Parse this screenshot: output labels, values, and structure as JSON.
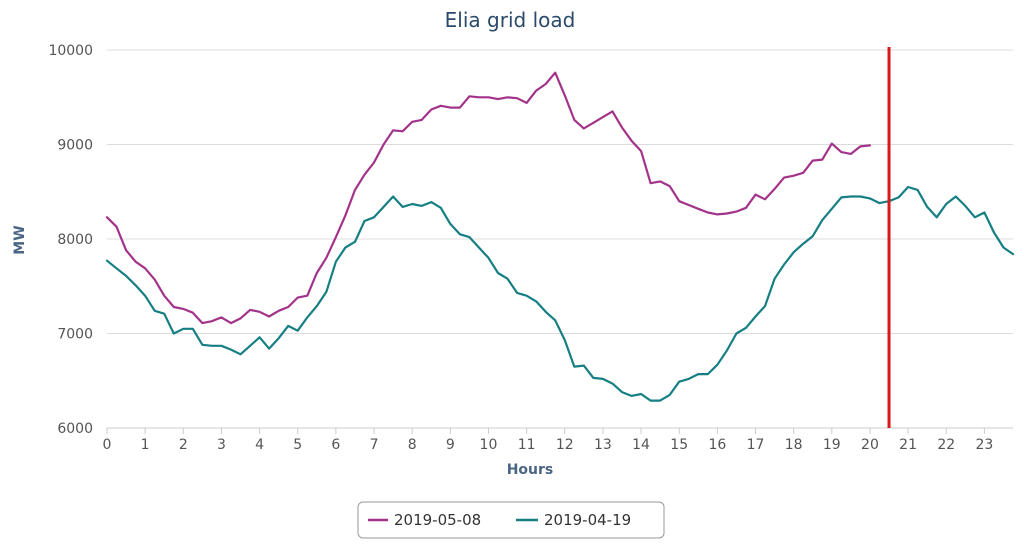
{
  "chart_data": {
    "type": "line",
    "title": "Elia grid load",
    "xlabel": "Hours",
    "ylabel": "MW",
    "xlim": [
      0,
      23.75
    ],
    "ylim": [
      6000,
      10000
    ],
    "x_ticks": [
      0,
      1,
      2,
      3,
      4,
      5,
      6,
      7,
      8,
      9,
      10,
      11,
      12,
      13,
      14,
      15,
      16,
      17,
      18,
      19,
      20,
      21,
      22,
      23
    ],
    "y_ticks": [
      6000,
      7000,
      8000,
      9000,
      10000
    ],
    "grid": true,
    "legend_position": "bottom-center",
    "marker_line": {
      "x": 20.5,
      "color": "#d7191c"
    },
    "series": [
      {
        "name": "2019-05-08",
        "color": "#a3338a",
        "x_step": 0.25,
        "values": [
          8230,
          8130,
          7880,
          7760,
          7690,
          7570,
          7400,
          7280,
          7260,
          7220,
          7110,
          7130,
          7170,
          7110,
          7160,
          7250,
          7230,
          7180,
          7240,
          7280,
          7380,
          7400,
          7640,
          7800,
          8020,
          8250,
          8520,
          8680,
          8810,
          9000,
          9150,
          9140,
          9240,
          9260,
          9370,
          9410,
          9390,
          9390,
          9510,
          9500,
          9500,
          9480,
          9500,
          9490,
          9440,
          9570,
          9640,
          9760,
          9520,
          9260,
          9170,
          9230,
          9290,
          9350,
          9180,
          9040,
          8930,
          8590,
          8610,
          8560,
          8400,
          8360,
          8320,
          8280,
          8260,
          8270,
          8290,
          8330,
          8470,
          8420,
          8530,
          8650,
          8670,
          8700,
          8830,
          8840,
          9010,
          8920,
          8900,
          8980,
          8990
        ]
      },
      {
        "name": "2019-04-19",
        "color": "#157f84",
        "x_step": 0.25,
        "values": [
          7770,
          7690,
          7610,
          7510,
          7400,
          7240,
          7210,
          7000,
          7050,
          7050,
          6880,
          6870,
          6870,
          6830,
          6780,
          6870,
          6960,
          6840,
          6950,
          7080,
          7030,
          7170,
          7290,
          7440,
          7760,
          7910,
          7970,
          8190,
          8230,
          8340,
          8450,
          8340,
          8370,
          8350,
          8390,
          8330,
          8160,
          8050,
          8020,
          7910,
          7800,
          7640,
          7580,
          7430,
          7400,
          7340,
          7230,
          7140,
          6930,
          6650,
          6660,
          6530,
          6520,
          6470,
          6380,
          6340,
          6360,
          6290,
          6290,
          6350,
          6490,
          6520,
          6570,
          6570,
          6670,
          6820,
          7000,
          7060,
          7180,
          7290,
          7580,
          7730,
          7860,
          7950,
          8030,
          8200,
          8320,
          8440,
          8450,
          8450,
          8430,
          8380,
          8400,
          8440,
          8550,
          8520,
          8340,
          8230,
          8370,
          8450,
          8350,
          8230,
          8280,
          8070,
          7910,
          7840
        ]
      }
    ]
  }
}
